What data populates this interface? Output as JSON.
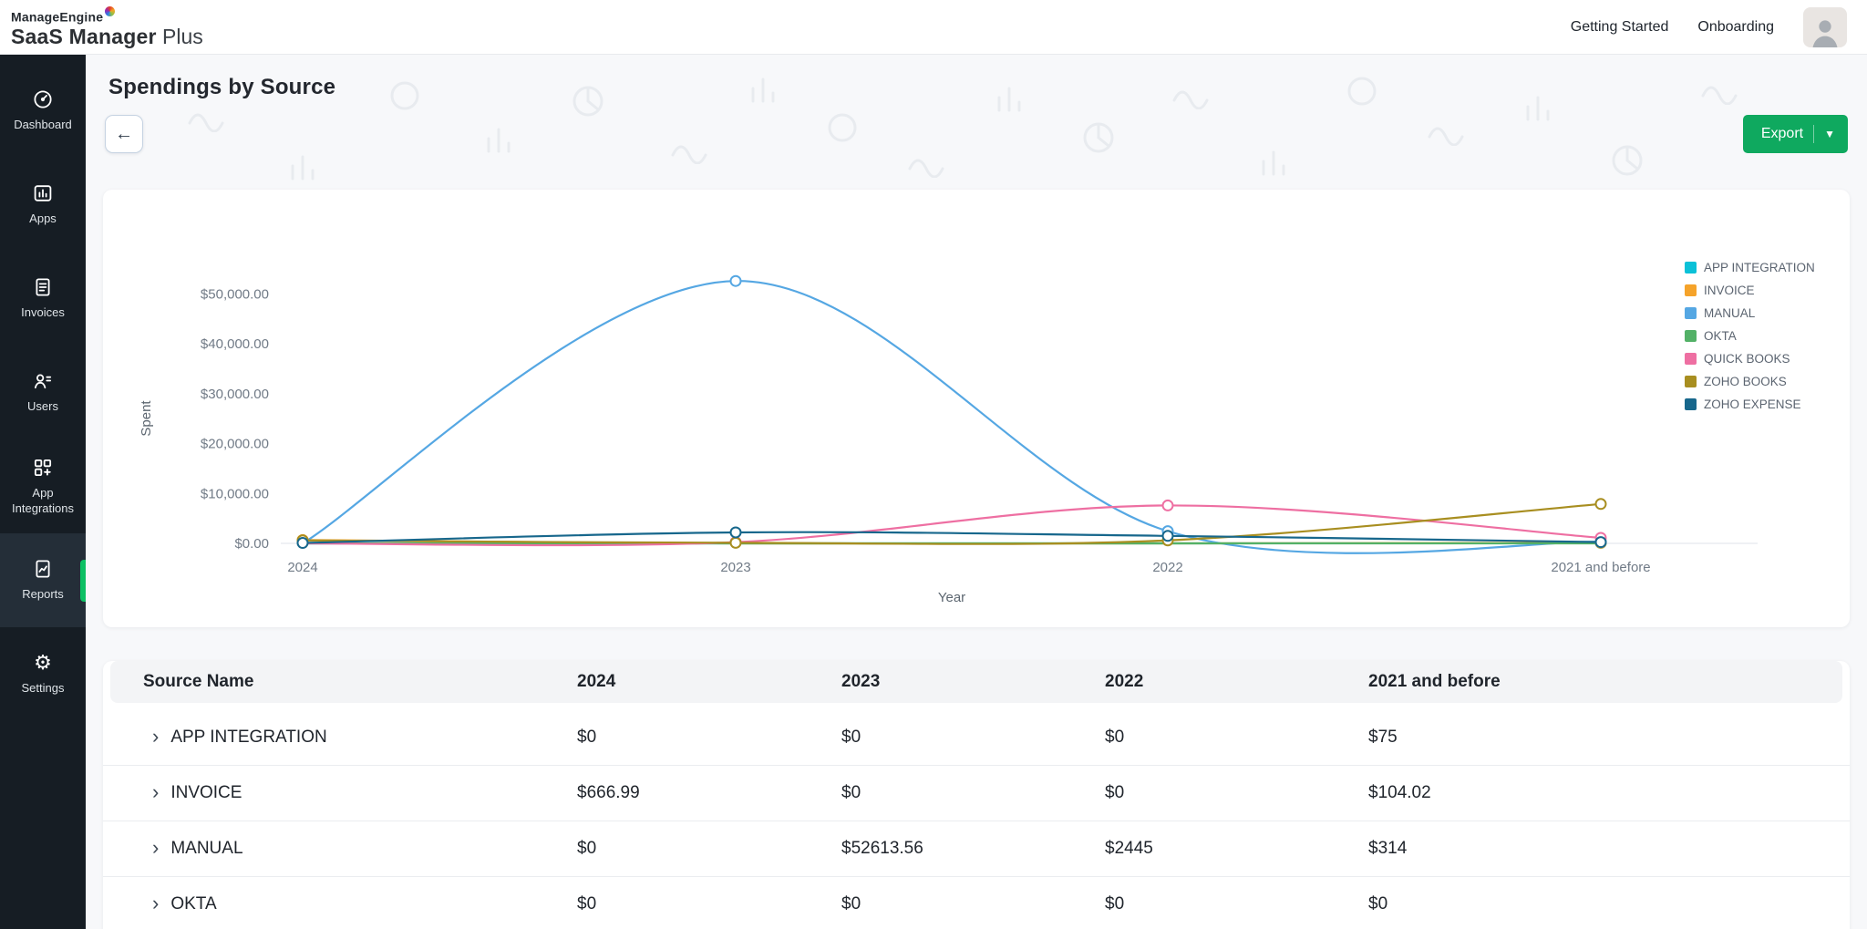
{
  "header": {
    "brand_line1": "ManageEngine",
    "brand_name": "SaaS Manager",
    "brand_suffix": "Plus",
    "nav": [
      {
        "label": "Getting Started"
      },
      {
        "label": "Onboarding"
      }
    ]
  },
  "sidebar": {
    "items": [
      {
        "label": "Dashboard",
        "icon": "dashboard-icon",
        "active": false
      },
      {
        "label": "Apps",
        "icon": "apps-icon",
        "active": false
      },
      {
        "label": "Invoices",
        "icon": "invoices-icon",
        "active": false
      },
      {
        "label": "Users",
        "icon": "users-icon",
        "active": false
      },
      {
        "label": "App Integrations",
        "icon": "app-integrations-icon",
        "active": false
      },
      {
        "label": "Reports",
        "icon": "reports-icon",
        "active": true
      },
      {
        "label": "Settings",
        "icon": "settings-icon",
        "active": false
      }
    ]
  },
  "page": {
    "title": "Spendings by Source",
    "back_label": "←",
    "export_label": "Export"
  },
  "chart_data": {
    "type": "line",
    "title": "Spendings by Source",
    "categories": [
      "2024",
      "2023",
      "2022",
      "2021 and before"
    ],
    "series": [
      {
        "name": "APP INTEGRATION",
        "color": "#0bc1d8",
        "values": [
          0,
          0,
          0,
          75
        ]
      },
      {
        "name": "INVOICE",
        "color": "#f5a32a",
        "values": [
          666.99,
          0,
          0,
          104.02
        ]
      },
      {
        "name": "MANUAL",
        "color": "#55a7e3",
        "values": [
          0,
          52613.56,
          2445,
          314
        ]
      },
      {
        "name": "OKTA",
        "color": "#53b167",
        "values": [
          0,
          0,
          0,
          0
        ]
      },
      {
        "name": "QUICK BOOKS",
        "color": "#ee6fa2",
        "values": [
          0,
          250,
          7600,
          1100
        ]
      },
      {
        "name": "ZOHO BOOKS",
        "color": "#a88e20",
        "values": [
          600,
          120,
          600,
          7900
        ]
      },
      {
        "name": "ZOHO EXPENSE",
        "color": "#17678c",
        "values": [
          80,
          2200,
          1500,
          250
        ]
      }
    ],
    "xlabel": "Year",
    "ylabel": "Spent",
    "ylim": [
      0,
      55000
    ],
    "yticks": [
      {
        "value": 0,
        "label": "$0.00"
      },
      {
        "value": 10000,
        "label": "$10,000.00"
      },
      {
        "value": 20000,
        "label": "$20,000.00"
      },
      {
        "value": 30000,
        "label": "$30,000.00"
      },
      {
        "value": 40000,
        "label": "$40,000.00"
      },
      {
        "value": 50000,
        "label": "$50,000.00"
      }
    ],
    "legend_position": "right",
    "grid": false
  },
  "table": {
    "columns": [
      "Source Name",
      "2024",
      "2023",
      "2022",
      "2021 and before"
    ],
    "rows": [
      {
        "name": "APP INTEGRATION",
        "values": [
          "$0",
          "$0",
          "$0",
          "$75"
        ]
      },
      {
        "name": "INVOICE",
        "values": [
          "$666.99",
          "$0",
          "$0",
          "$104.02"
        ]
      },
      {
        "name": "MANUAL",
        "values": [
          "$0",
          "$52613.56",
          "$2445",
          "$314"
        ]
      },
      {
        "name": "OKTA",
        "values": [
          "$0",
          "$0",
          "$0",
          "$0"
        ]
      }
    ]
  },
  "colors": {
    "accent_green": "#0fa95f",
    "sidebar_bg": "#161d24",
    "sidebar_active_accent": "#0cc063",
    "page_bg": "#f7f8fa"
  }
}
